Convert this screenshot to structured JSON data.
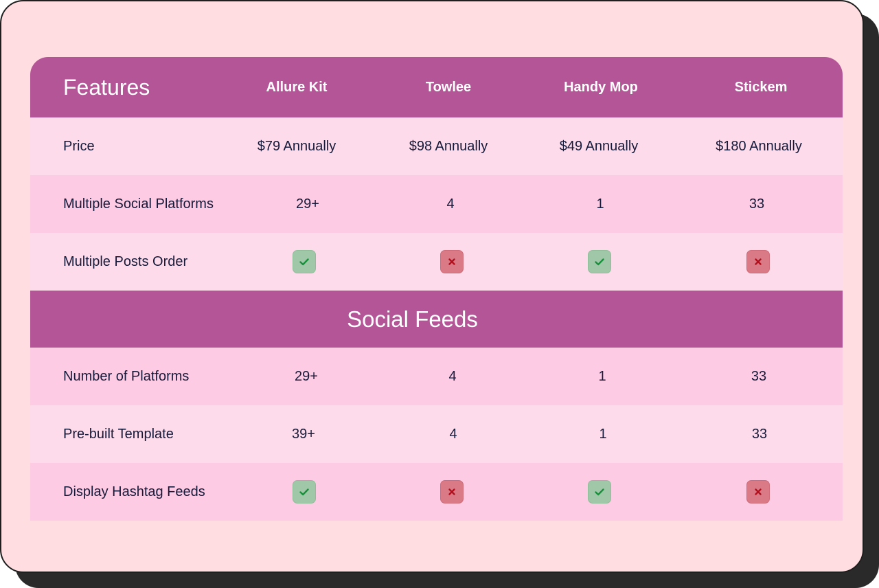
{
  "header": {
    "title": "Features",
    "products": [
      "Allure Kit",
      "Towlee",
      "Handy Mop",
      "Stickem"
    ]
  },
  "rows_top": [
    {
      "label": "Price",
      "values": [
        "$79 Annually",
        "$98 Annually",
        "$49 Annually",
        "$180 Annually"
      ],
      "type": "text"
    },
    {
      "label": "Multiple Social Platforms",
      "values": [
        "29+",
        "4",
        "1",
        "33"
      ],
      "type": "text"
    },
    {
      "label": "Multiple Posts Order",
      "values": [
        true,
        false,
        true,
        false
      ],
      "type": "bool"
    }
  ],
  "section": {
    "title": "Social Feeds"
  },
  "rows_bottom": [
    {
      "label": "Number of Platforms",
      "values": [
        "29+",
        "4",
        "1",
        "33"
      ],
      "type": "text"
    },
    {
      "label": "Pre-built Template",
      "values": [
        "39+",
        "4",
        "1",
        "33"
      ],
      "type": "text"
    },
    {
      "label": "Display Hashtag Feeds",
      "values": [
        true,
        false,
        true,
        false
      ],
      "type": "bool"
    }
  ],
  "icons": {
    "yes": "check-icon",
    "no": "close-icon"
  },
  "colors": {
    "header_bg": "#b35596",
    "card_bg": "#ffdde0",
    "row_light": "#fddbea",
    "row_dark": "#fdcbe3",
    "yes_badge": "#9fc7a8",
    "yes_mark": "#1a8f3c",
    "no_badge": "#d97a86",
    "no_mark": "#b0101e",
    "text": "#161a3a"
  }
}
